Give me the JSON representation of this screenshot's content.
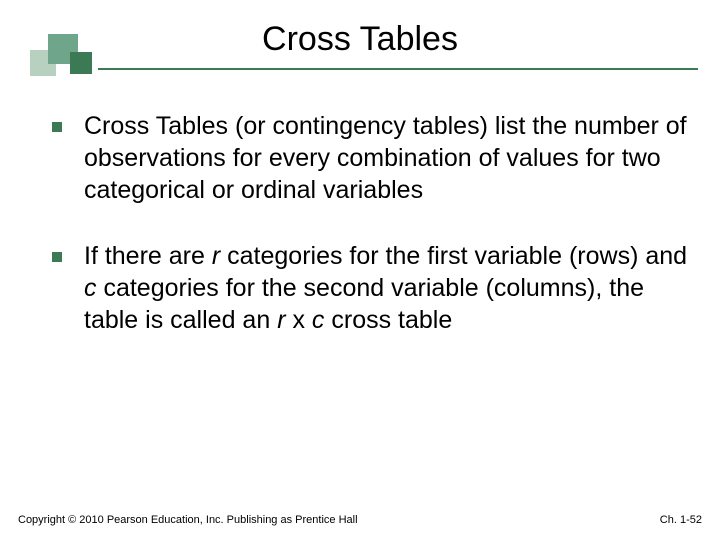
{
  "colors": {
    "accent_mid": "#6fa58b",
    "accent_light": "#b8d0c0",
    "accent_dark": "#3c7a56",
    "rule": "#3c7a56",
    "bullet": "#3c7a56"
  },
  "title": "Cross Tables",
  "bullets": [
    {
      "runs": [
        {
          "text": "Cross Tables (or contingency tables) list the number of observations for every combination of values for two categorical or ordinal variables",
          "italic": false
        }
      ]
    },
    {
      "runs": [
        {
          "text": "If there are  ",
          "italic": false
        },
        {
          "text": "r",
          "italic": true
        },
        {
          "text": "  categories for the first variable (rows) and  ",
          "italic": false
        },
        {
          "text": "c",
          "italic": true
        },
        {
          "text": "  categories for the second variable (columns), the table is called an  ",
          "italic": false
        },
        {
          "text": "r",
          "italic": true
        },
        {
          "text": " x ",
          "italic": false
        },
        {
          "text": "c",
          "italic": true
        },
        {
          "text": "  cross table",
          "italic": false
        }
      ]
    }
  ],
  "footer": {
    "left": "Copyright © 2010 Pearson Education, Inc. Publishing as Prentice Hall",
    "right": "Ch. 1-52"
  }
}
